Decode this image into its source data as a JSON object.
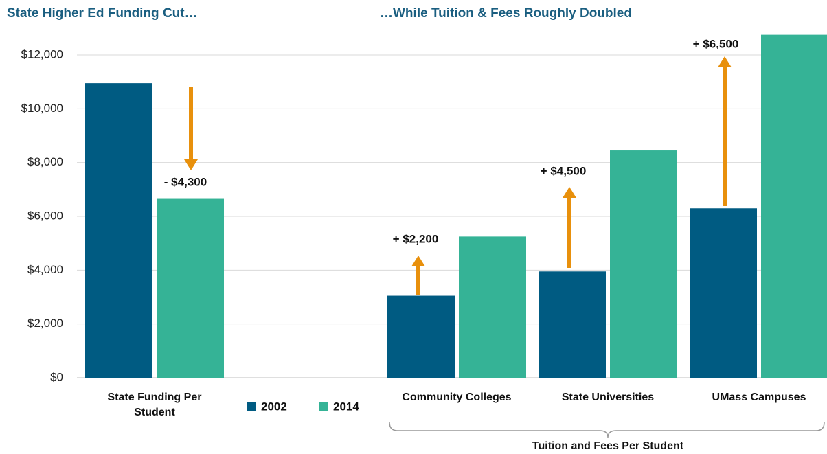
{
  "chart_data": {
    "type": "bar",
    "title": "State Higher Ed Funding Cut…",
    "subtitle": "…While Tuition & Fees Roughly Doubled",
    "categories": [
      "State Funding Per Student",
      "Community Colleges",
      "State Universities",
      "UMass Campuses"
    ],
    "series": [
      {
        "name": "2002",
        "color": "#005b82",
        "values": [
          10950,
          3050,
          3950,
          6300
        ]
      },
      {
        "name": "2014",
        "color": "#35b396",
        "values": [
          6650,
          5250,
          8450,
          12750
        ]
      }
    ],
    "annotations": [
      "- $4,300",
      "+ $2,200",
      "+ $4,500",
      "+ $6,500"
    ],
    "group_label": "Tuition and Fees Per Student",
    "ylim": [
      0,
      12800
    ],
    "yticks": [
      {
        "value": 0,
        "label": "$0"
      },
      {
        "value": 2000,
        "label": "$2,000"
      },
      {
        "value": 4000,
        "label": "$4,000"
      },
      {
        "value": 6000,
        "label": "$6,000"
      },
      {
        "value": 8000,
        "label": "$8,000"
      },
      {
        "value": 10000,
        "label": "$10,000"
      },
      {
        "value": 12000,
        "label": "$12,000"
      }
    ],
    "grid": true
  }
}
